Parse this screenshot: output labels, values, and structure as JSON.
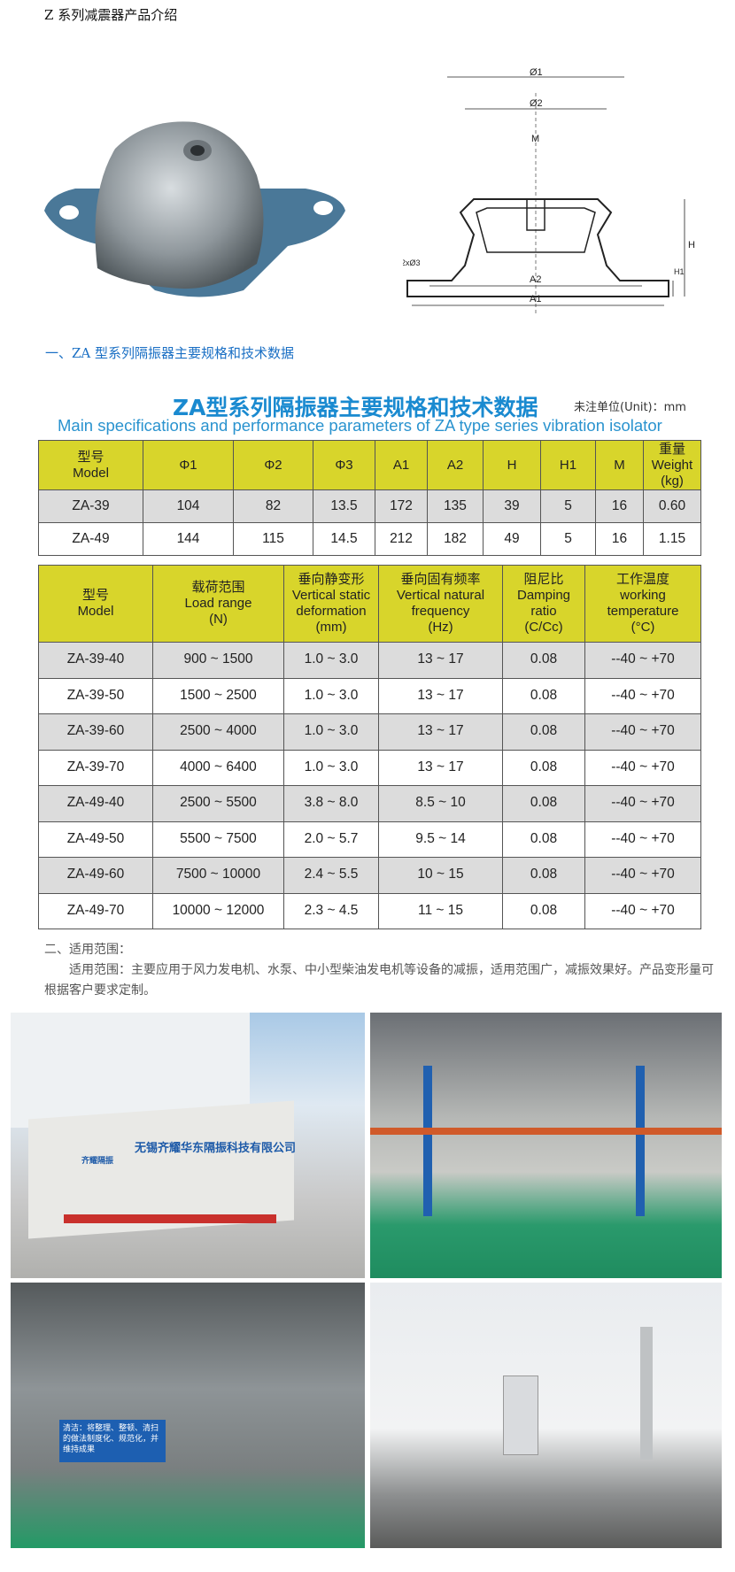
{
  "page_title": "Z 系列减震器产品介绍",
  "diagram_labels": {
    "phi1": "Ø1",
    "phi2": "Ø2",
    "m": "M",
    "h": "H",
    "h1": "H1",
    "phi3": "2xØ3",
    "a2": "A2",
    "a1": "A1"
  },
  "section1_heading": "一、ZA 型系列隔振器主要规格和技术数据",
  "table1_banner": {
    "title": "ZA型系列隔振器主要规格和技术数据",
    "unit": "未注单位(Unit)：mm",
    "subtitle": "Main specifications and performance parameters of ZA type series vibration isolator"
  },
  "table1": {
    "headers": [
      [
        "型号",
        "Model"
      ],
      [
        "Φ1"
      ],
      [
        "Φ2"
      ],
      [
        "Φ3"
      ],
      [
        "A1"
      ],
      [
        "A2"
      ],
      [
        "H"
      ],
      [
        "H1"
      ],
      [
        "M"
      ],
      [
        "重量",
        "Weight",
        "(kg)"
      ]
    ],
    "rows": [
      [
        "ZA-39",
        "104",
        "82",
        "13.5",
        "172",
        "135",
        "39",
        "5",
        "16",
        "0.60"
      ],
      [
        "ZA-49",
        "144",
        "115",
        "14.5",
        "212",
        "182",
        "49",
        "5",
        "16",
        "1.15"
      ]
    ]
  },
  "table2": {
    "headers": [
      [
        "型号",
        "Model"
      ],
      [
        "载荷范围",
        "Load range",
        "(N)"
      ],
      [
        "垂向静变形",
        "Vertical static",
        "deformation",
        "(mm)"
      ],
      [
        "垂向固有频率",
        "Vertical natural",
        "frequency",
        "(Hz)"
      ],
      [
        "阻尼比",
        "Damping",
        "ratio",
        "(C/Cc)"
      ],
      [
        "工作温度",
        "working",
        "temperature",
        "(°C)"
      ]
    ],
    "rows": [
      [
        "ZA-39-40",
        "900 ~ 1500",
        "1.0 ~ 3.0",
        "13 ~ 17",
        "0.08",
        "--40 ~ +70"
      ],
      [
        "ZA-39-50",
        "1500 ~ 2500",
        "1.0 ~ 3.0",
        "13 ~ 17",
        "0.08",
        "--40 ~ +70"
      ],
      [
        "ZA-39-60",
        "2500 ~ 4000",
        "1.0 ~ 3.0",
        "13 ~ 17",
        "0.08",
        "--40 ~ +70"
      ],
      [
        "ZA-39-70",
        "4000 ~ 6400",
        "1.0 ~ 3.0",
        "13 ~ 17",
        "0.08",
        "--40 ~ +70"
      ],
      [
        "ZA-49-40",
        "2500 ~ 5500",
        "3.8 ~ 8.0",
        "8.5 ~ 10",
        "0.08",
        "--40 ~ +70"
      ],
      [
        "ZA-49-50",
        "5500 ~ 7500",
        "2.0 ~ 5.7",
        "9.5 ~ 14",
        "0.08",
        "--40 ~ +70"
      ],
      [
        "ZA-49-60",
        "7500 ~ 10000",
        "2.4 ~ 5.5",
        "10 ~ 15",
        "0.08",
        "--40 ~ +70"
      ],
      [
        "ZA-49-70",
        "10000 ~ 12000",
        "2.3 ~ 4.5",
        "11 ~ 15",
        "0.08",
        "--40 ~ +70"
      ]
    ]
  },
  "section2": {
    "heading": "二、适用范围：",
    "body": "适用范围：主要应用于风力发电机、水泵、中小型柴油发电机等设备的减振，适用范围广，减振效果好。产品变形量可根据客户要求定制。"
  },
  "photos": {
    "sign_text": "无锡齐耀华东隔振科技有限公司",
    "logo_text": "齐耀隔振",
    "board_text": "清洁：将整理、整顿、清扫的做法制度化、规范化，并维持成果"
  },
  "colors": {
    "header_yellow": "#d8d52b",
    "row_gray": "#dcdcdc",
    "heading_blue": "#1a6fc4"
  }
}
